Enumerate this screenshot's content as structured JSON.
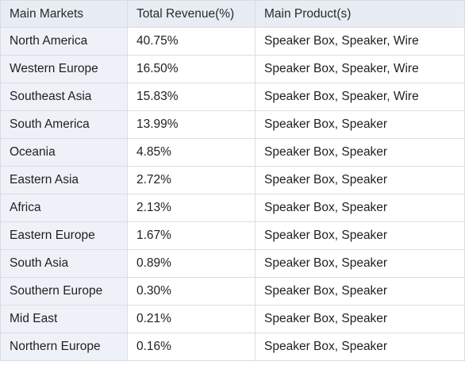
{
  "table": {
    "headers": [
      "Main Markets",
      "Total Revenue(%)",
      "Main Product(s)"
    ],
    "rows": [
      [
        "North America",
        "40.75%",
        "Speaker Box, Speaker, Wire"
      ],
      [
        "Western Europe",
        "16.50%",
        "Speaker Box, Speaker, Wire"
      ],
      [
        "Southeast Asia",
        "15.83%",
        "Speaker Box, Speaker, Wire"
      ],
      [
        "South America",
        "13.99%",
        "Speaker Box, Speaker"
      ],
      [
        "Oceania",
        "4.85%",
        "Speaker Box, Speaker"
      ],
      [
        "Eastern Asia",
        "2.72%",
        "Speaker Box, Speaker"
      ],
      [
        "Africa",
        "2.13%",
        "Speaker Box, Speaker"
      ],
      [
        "Eastern Europe",
        "1.67%",
        "Speaker Box, Speaker"
      ],
      [
        "South Asia",
        "0.89%",
        "Speaker Box, Speaker"
      ],
      [
        "Southern Europe",
        "0.30%",
        "Speaker Box, Speaker"
      ],
      [
        "Mid East",
        "0.21%",
        "Speaker Box, Speaker"
      ],
      [
        "Northern Europe",
        "0.16%",
        "Speaker Box, Speaker"
      ]
    ]
  },
  "colors": {
    "header_bg": "#e8edf4",
    "first_column_bg": "#eef2f8",
    "border": "#d9dde3",
    "text": "#1f1f1f"
  }
}
